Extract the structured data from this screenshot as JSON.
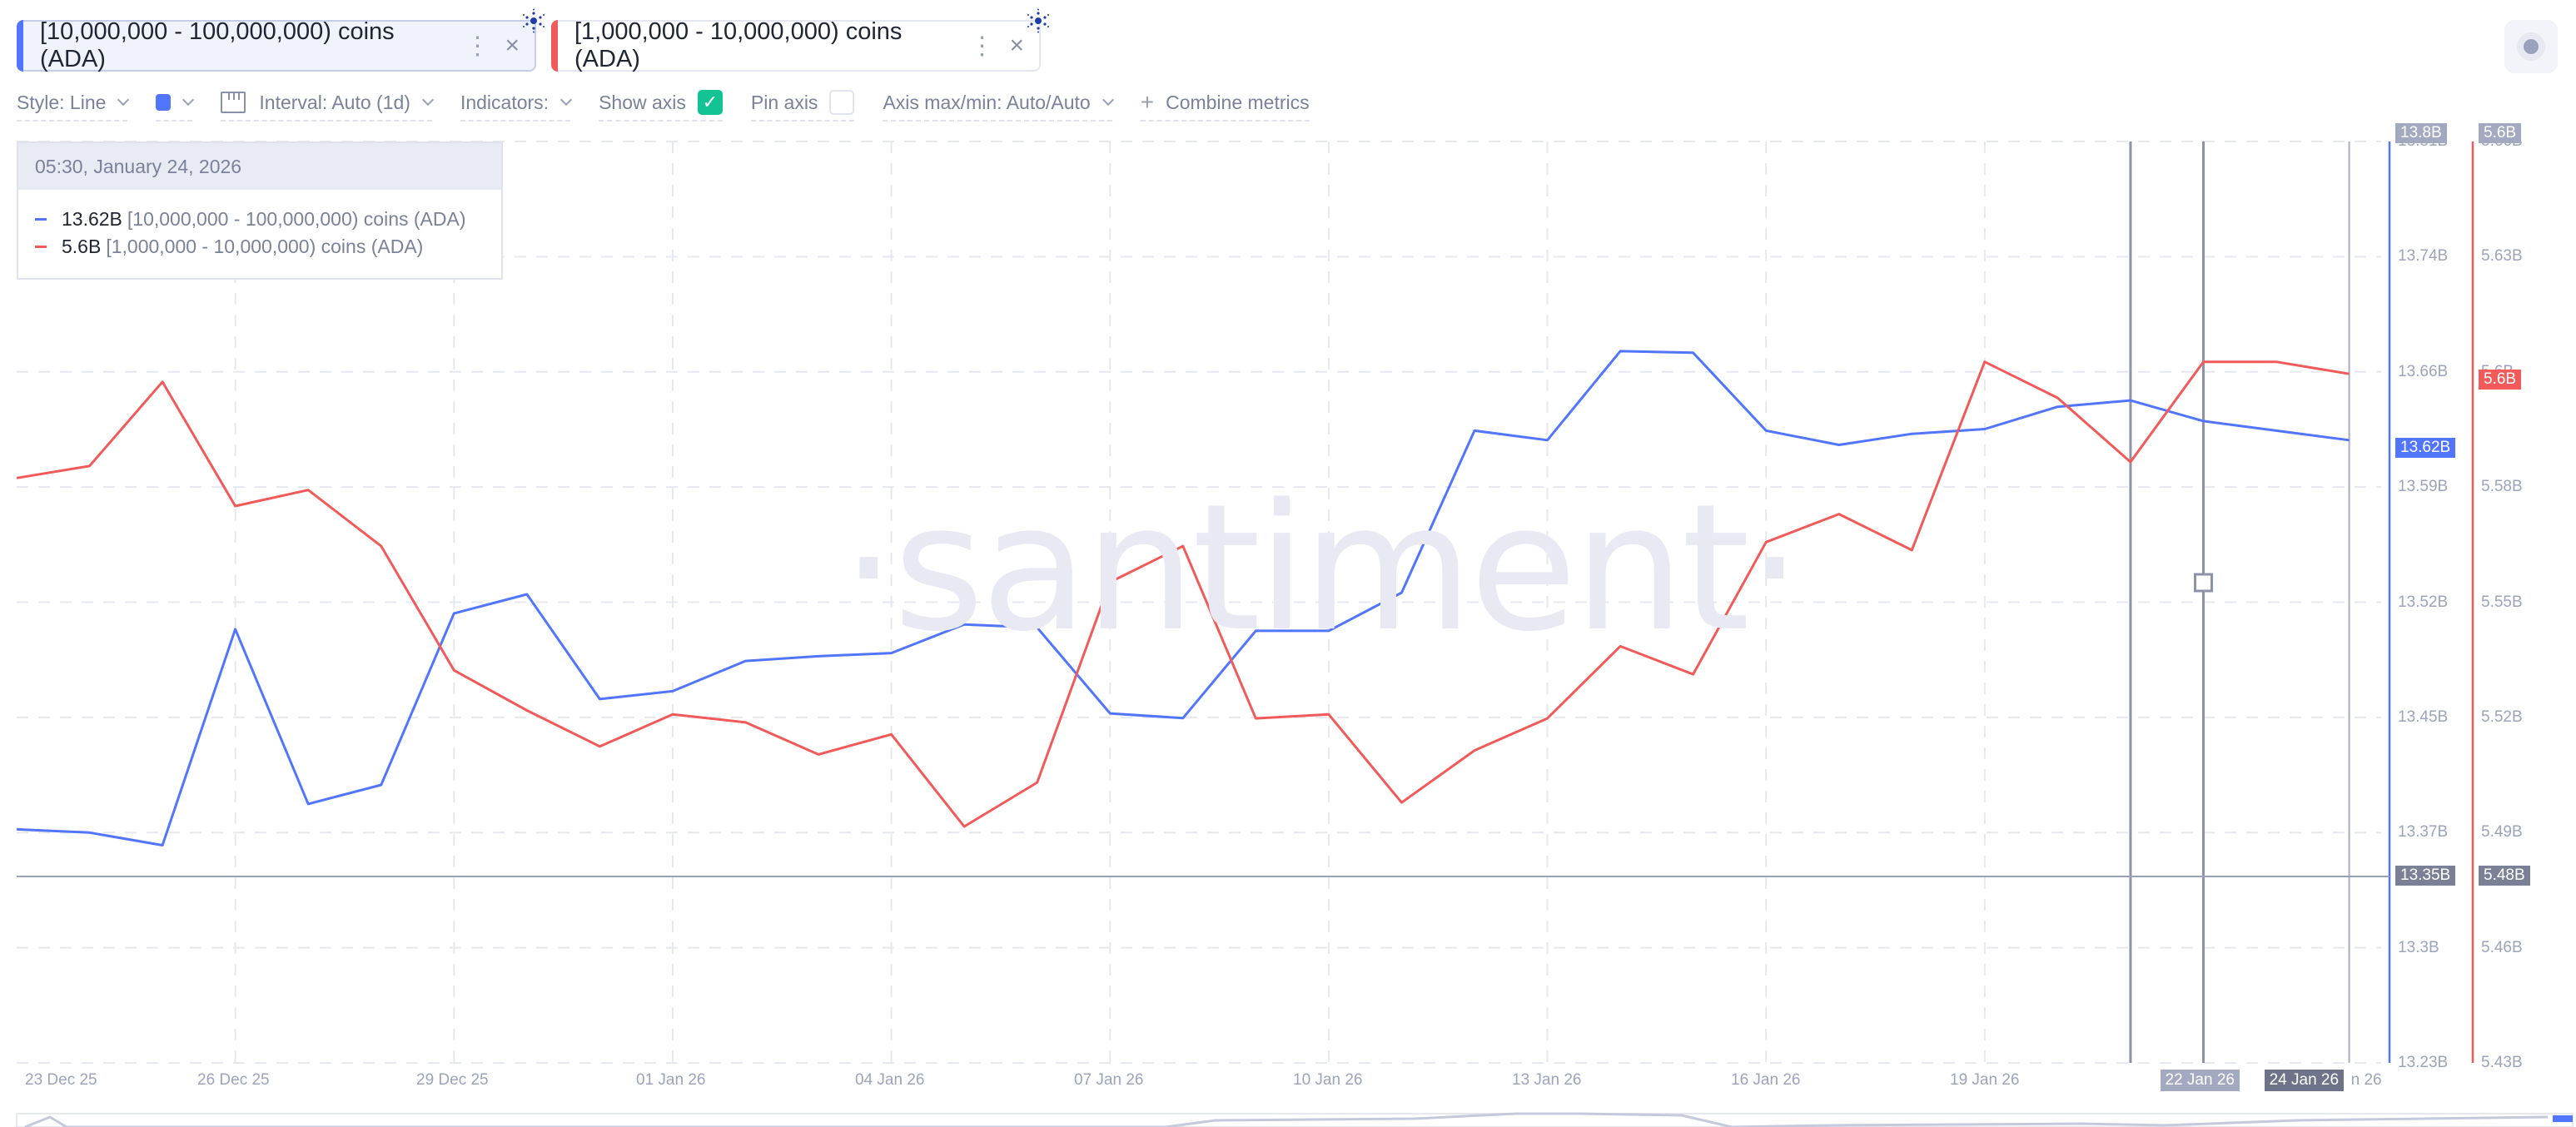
{
  "metric_tabs": [
    {
      "label": "[10,000,000 - 100,000,000) coins (ADA)",
      "color": "#5275ff",
      "active": true
    },
    {
      "label": "[1,000,000 - 10,000,000) coins (ADA)",
      "color": "#f25a5a",
      "active": false
    }
  ],
  "toolbar": {
    "style": "Style: Line",
    "color_swatch": "#5275ff",
    "interval": "Interval: Auto (1d)",
    "indicators": "Indicators:",
    "show_axis": "Show axis",
    "show_axis_checked": true,
    "pin_axis": "Pin axis",
    "pin_axis_checked": false,
    "axis_maxmin": "Axis max/min: Auto/Auto",
    "combine": "Combine metrics"
  },
  "tooltip": {
    "datetime": "05:30, January 24, 2026",
    "rows": [
      {
        "value": "13.62B",
        "name": "[10,000,000 - 100,000,000) coins (ADA)",
        "color": "#5275ff"
      },
      {
        "value": "5.6B",
        "name": "[1,000,000 - 10,000,000) coins (ADA)",
        "color": "#f25a5a"
      }
    ]
  },
  "watermark": "·santiment·",
  "axes": {
    "blue_ticks": [
      "13.81B",
      "13.74B",
      "13.66B",
      "13.59B",
      "13.52B",
      "13.45B",
      "13.37B",
      "13.3B",
      "13.23B"
    ],
    "red_ticks": [
      "5.66B",
      "5.63B",
      "5.6B",
      "5.58B",
      "5.55B",
      "5.52B",
      "5.49B",
      "5.46B",
      "5.43B"
    ],
    "blue_top_badge": "13.8B",
    "red_top_badge": "5.6B",
    "blue_current_badge": "13.62B",
    "red_current_badge": "5.6B",
    "blue_cursor_badge": "13.35B",
    "red_cursor_badge": "5.48B",
    "x_labels": [
      "23 Dec 25",
      "26 Dec 25",
      "29 Dec 25",
      "01 Jan 26",
      "04 Jan 26",
      "07 Jan 26",
      "10 Jan 26",
      "13 Jan 26",
      "16 Jan 26",
      "19 Jan 26",
      "22 Jan 26",
      "24 Jan 26"
    ],
    "x_badge_22": "22 Jan 26",
    "x_badge_24": "24 Jan 26",
    "x_partial": "n 26"
  },
  "chart_data": {
    "type": "line",
    "title": "",
    "xlabel": "",
    "ylabel": "",
    "x": [
      "23 Dec 25",
      "24 Dec 25",
      "25 Dec 25",
      "26 Dec 25",
      "27 Dec 25",
      "28 Dec 25",
      "29 Dec 25",
      "30 Dec 25",
      "31 Dec 25",
      "01 Jan 26",
      "02 Jan 26",
      "03 Jan 26",
      "04 Jan 26",
      "05 Jan 26",
      "06 Jan 26",
      "07 Jan 26",
      "08 Jan 26",
      "09 Jan 26",
      "10 Jan 26",
      "11 Jan 26",
      "12 Jan 26",
      "13 Jan 26",
      "14 Jan 26",
      "15 Jan 26",
      "16 Jan 26",
      "17 Jan 26",
      "18 Jan 26",
      "19 Jan 26",
      "20 Jan 26",
      "21 Jan 26",
      "22 Jan 26",
      "23 Jan 26",
      "24 Jan 26"
    ],
    "series": [
      {
        "name": "[10,000,000 - 100,000,000) coins (ADA)",
        "color": "#5275ff",
        "axis": "left",
        "ylim": [
          13.23,
          13.81
        ],
        "values": [
          13.377,
          13.375,
          13.367,
          13.503,
          13.393,
          13.405,
          13.513,
          13.525,
          13.459,
          13.464,
          13.483,
          13.486,
          13.488,
          13.506,
          13.504,
          13.45,
          13.447,
          13.502,
          13.502,
          13.526,
          13.628,
          13.622,
          13.678,
          13.677,
          13.628,
          13.619,
          13.626,
          13.629,
          13.643,
          13.647,
          13.634,
          13.628,
          13.622
        ]
      },
      {
        "name": "[1,000,000 - 10,000,000) coins (ADA)",
        "color": "#f25a5a",
        "axis": "right",
        "ylim": [
          5.43,
          5.66
        ],
        "values": [
          5.576,
          5.579,
          5.6,
          5.569,
          5.573,
          5.559,
          5.528,
          5.518,
          5.509,
          5.517,
          5.515,
          5.507,
          5.512,
          5.489,
          5.5,
          5.55,
          5.559,
          5.516,
          5.517,
          5.495,
          5.508,
          5.516,
          5.534,
          5.527,
          5.56,
          5.567,
          5.558,
          5.605,
          5.596,
          5.58,
          5.605,
          5.605,
          5.602
        ]
      }
    ],
    "grid": true,
    "legend_position": "tooltip-top-left",
    "cursor_lines": [
      "21 Jan 26",
      "22 Jan 26",
      "24 Jan 26"
    ],
    "horizontal_cursor": {
      "left": "13.35B",
      "right": "5.48B"
    }
  }
}
